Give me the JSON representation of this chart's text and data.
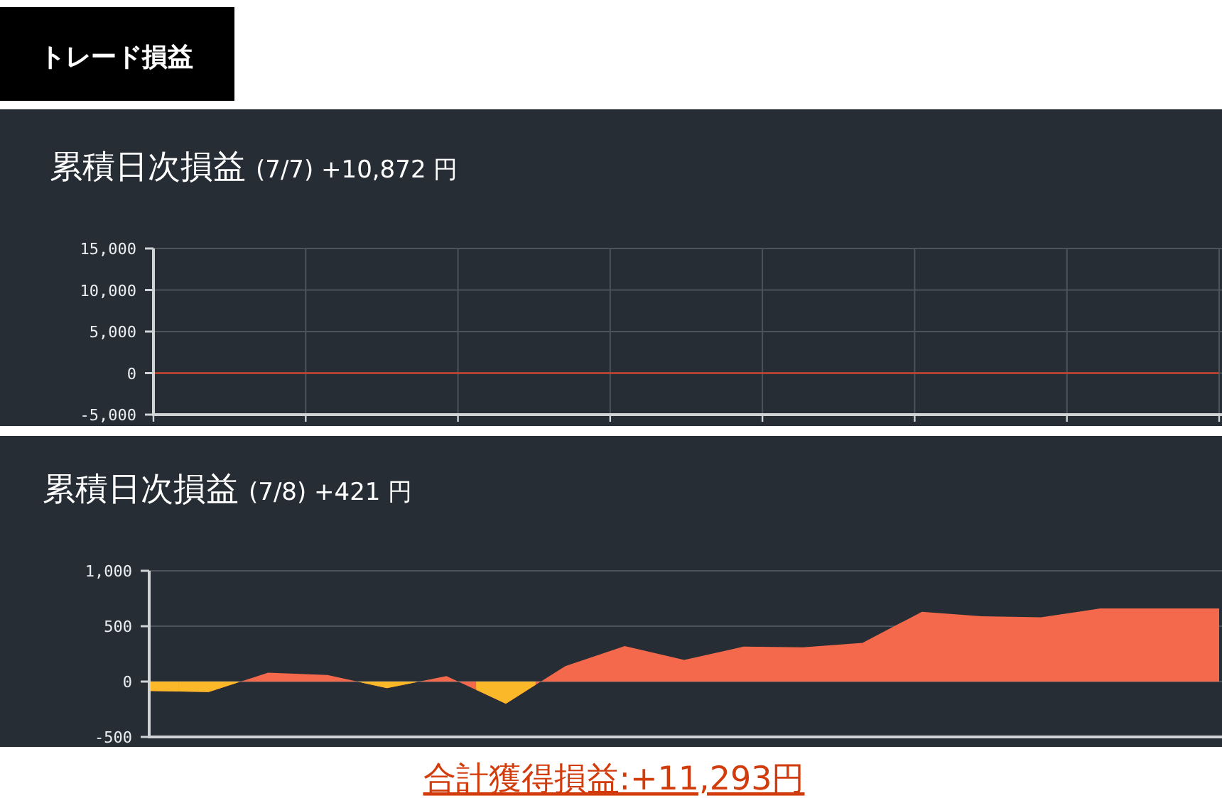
{
  "chart_data": [
    {
      "type": "line",
      "title": "累積日次損益",
      "subtitle": "(7/7) +10,872 円",
      "annotations": [
        "トレード損益"
      ],
      "categories": [
        null,
        null,
        null,
        null,
        null,
        null,
        null,
        null
      ],
      "ylim": [
        -5000,
        15000
      ],
      "yticks": [
        {
          "value": -5000,
          "label": "-5,000"
        },
        {
          "value": 0,
          "label": "0"
        },
        {
          "value": 5000,
          "label": "5,000"
        },
        {
          "value": 10000,
          "label": "10,000"
        },
        {
          "value": 15000,
          "label": "15,000"
        }
      ],
      "grid": true,
      "tick_labels": "y",
      "series": [
        {
          "color": "#c9432c",
          "values": [
            0,
            0,
            0,
            0,
            0,
            0,
            0,
            0
          ]
        }
      ]
    },
    {
      "type": "area",
      "title": "累積日次損益",
      "subtitle": "(7/8) +421 円",
      "annotations": [
        "合計獲得損益:+11,293円"
      ],
      "categories": [
        null,
        null,
        null,
        null,
        null,
        null,
        null,
        null,
        null,
        null,
        null,
        null,
        null,
        null,
        null,
        null,
        null,
        null,
        null
      ],
      "ylim": [
        -500,
        1000
      ],
      "yticks": [
        {
          "value": -500,
          "label": "-500"
        },
        {
          "value": 0,
          "label": "0"
        },
        {
          "value": 500,
          "label": "500"
        },
        {
          "value": 1000,
          "label": "1,000"
        }
      ],
      "grid": "y",
      "tick_labels": "y",
      "series": [
        {
          "color": "#f4694b",
          "values": [
            -85,
            -95,
            80,
            60,
            -60,
            50,
            -200,
            140,
            320,
            195,
            315,
            310,
            350,
            630,
            590,
            580,
            660,
            660,
            660
          ],
          "colors": [
            "#fbb92a",
            "#fbb92a",
            "#f4694b",
            "#f4694b",
            "#fbb92a",
            "#f4694b",
            "#fbb92a",
            "#f4694b",
            "#f4694b",
            "#f4694b",
            "#f4694b",
            "#f4694b",
            "#f4694b",
            "#f4694b",
            "#f4694b",
            "#f4694b",
            "#f4694b",
            "#f4694b",
            "#f4694b"
          ]
        }
      ]
    }
  ]
}
